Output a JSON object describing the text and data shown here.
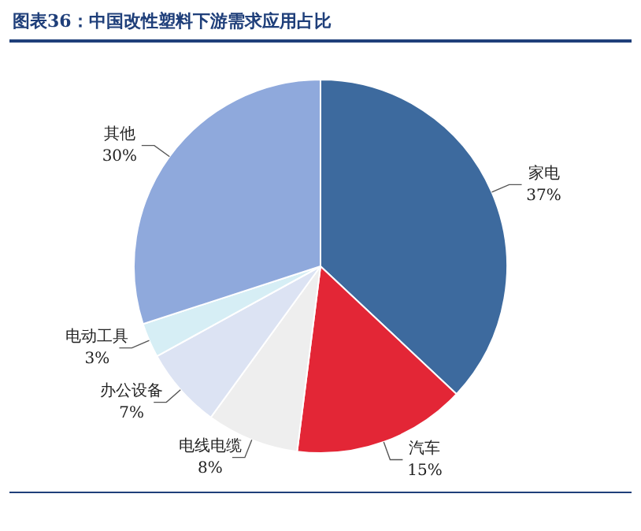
{
  "chart_data": {
    "type": "pie",
    "title": "图表36：中国改性塑料下游需求应用占比",
    "categories": [
      "家电",
      "汽车",
      "电线电缆",
      "办公设备",
      "电动工具",
      "其他"
    ],
    "values": [
      37,
      15,
      8,
      7,
      3,
      30
    ],
    "value_labels": [
      "37%",
      "15%",
      "8%",
      "7%",
      "3%",
      "30%"
    ],
    "colors": [
      "#3d6a9e",
      "#e32636",
      "#eeeeee",
      "#dce3f3",
      "#d6eef5",
      "#8fa9dc"
    ],
    "legend": false
  }
}
